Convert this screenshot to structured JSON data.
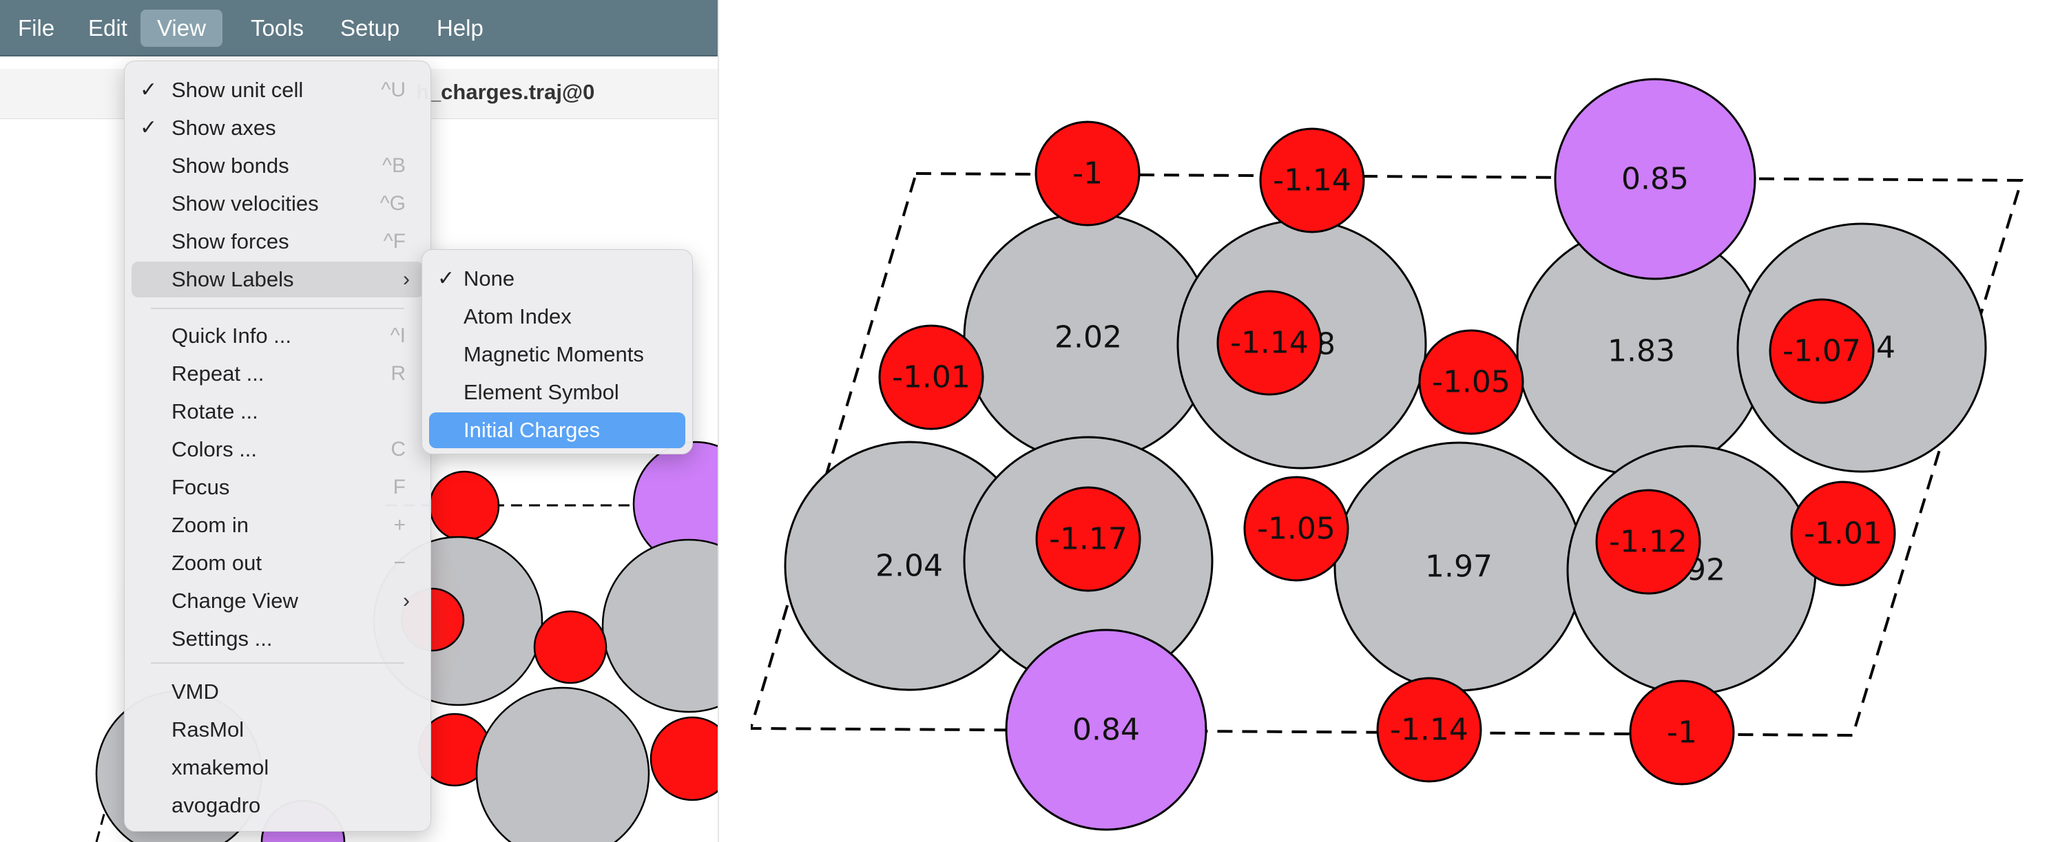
{
  "menubar": {
    "items": [
      {
        "label": "File",
        "active": false
      },
      {
        "label": "Edit",
        "active": false
      },
      {
        "label": "View",
        "active": true
      },
      {
        "label": "Tools",
        "active": false
      },
      {
        "label": "Setup",
        "active": false
      },
      {
        "label": "Help",
        "active": false
      }
    ]
  },
  "window": {
    "file_title": "h_charges.traj@0"
  },
  "view_menu": {
    "items": [
      {
        "label": "Show unit cell",
        "shortcut": "^U",
        "checked": true
      },
      {
        "label": "Show axes",
        "shortcut": "",
        "checked": true
      },
      {
        "label": "Show bonds",
        "shortcut": "^B",
        "checked": false
      },
      {
        "label": "Show velocities",
        "shortcut": "^G",
        "checked": false
      },
      {
        "label": "Show forces",
        "shortcut": "^F",
        "checked": false
      },
      {
        "label": "Show Labels",
        "shortcut": "",
        "checked": false,
        "submenu": true,
        "highlighted": true
      },
      {
        "label": "Quick Info ...",
        "shortcut": "^I",
        "checked": false
      },
      {
        "label": "Repeat ...",
        "shortcut": "R",
        "checked": false
      },
      {
        "label": "Rotate ...",
        "shortcut": "",
        "checked": false
      },
      {
        "label": "Colors ...",
        "shortcut": "C",
        "checked": false
      },
      {
        "label": "Focus",
        "shortcut": "F",
        "checked": false
      },
      {
        "label": "Zoom in",
        "shortcut": "+",
        "checked": false
      },
      {
        "label": "Zoom out",
        "shortcut": "−",
        "checked": false
      },
      {
        "label": "Change View",
        "shortcut": "",
        "checked": false,
        "submenu": true
      },
      {
        "label": "Settings ...",
        "shortcut": "",
        "checked": false
      },
      {
        "label": "VMD",
        "shortcut": "",
        "checked": false
      },
      {
        "label": "RasMol",
        "shortcut": "",
        "checked": false
      },
      {
        "label": "xmakemol",
        "shortcut": "",
        "checked": false
      },
      {
        "label": "avogadro",
        "shortcut": "",
        "checked": false
      }
    ]
  },
  "labels_submenu": {
    "items": [
      {
        "label": "None",
        "checked": true,
        "selected": false
      },
      {
        "label": "Atom Index",
        "checked": false,
        "selected": false
      },
      {
        "label": "Magnetic Moments",
        "checked": false,
        "selected": false
      },
      {
        "label": "Element Symbol",
        "checked": false,
        "selected": false
      },
      {
        "label": "Initial Charges",
        "checked": false,
        "selected": true
      }
    ]
  },
  "icons": {
    "check": "check-icon",
    "submenu": "chevron-right-icon"
  },
  "colors": {
    "menubar": "#5f7985",
    "selected": "#5aa3f5",
    "grey_atom": "#bfc1c4",
    "red_atom": "#ff1010",
    "purple_atom": "#cd7ef8"
  },
  "structure": {
    "atoms": [
      {
        "element": "grey",
        "charge": "2.02"
      },
      {
        "element": "grey",
        "charge": "1.98"
      },
      {
        "element": "grey",
        "charge": "1.83"
      },
      {
        "element": "grey",
        "charge": "1.94"
      },
      {
        "element": "grey",
        "charge": "2.04"
      },
      {
        "element": "grey",
        "charge": "1.92"
      },
      {
        "element": "grey",
        "charge": "1.97"
      },
      {
        "element": "grey",
        "charge": "1.92"
      },
      {
        "element": "purple",
        "charge": "0.85"
      },
      {
        "element": "purple",
        "charge": "0.84"
      },
      {
        "element": "red",
        "charge": "-1"
      },
      {
        "element": "red",
        "charge": "-1.14"
      },
      {
        "element": "red",
        "charge": "-1.01"
      },
      {
        "element": "red",
        "charge": "-1.14"
      },
      {
        "element": "red",
        "charge": "-1.05"
      },
      {
        "element": "red",
        "charge": "-1.07"
      },
      {
        "element": "red",
        "charge": "-1.17"
      },
      {
        "element": "red",
        "charge": "-1.05"
      },
      {
        "element": "red",
        "charge": "-1.12"
      },
      {
        "element": "red",
        "charge": "-1.01"
      },
      {
        "element": "red",
        "charge": "-1.14"
      },
      {
        "element": "red",
        "charge": "-1"
      }
    ]
  }
}
